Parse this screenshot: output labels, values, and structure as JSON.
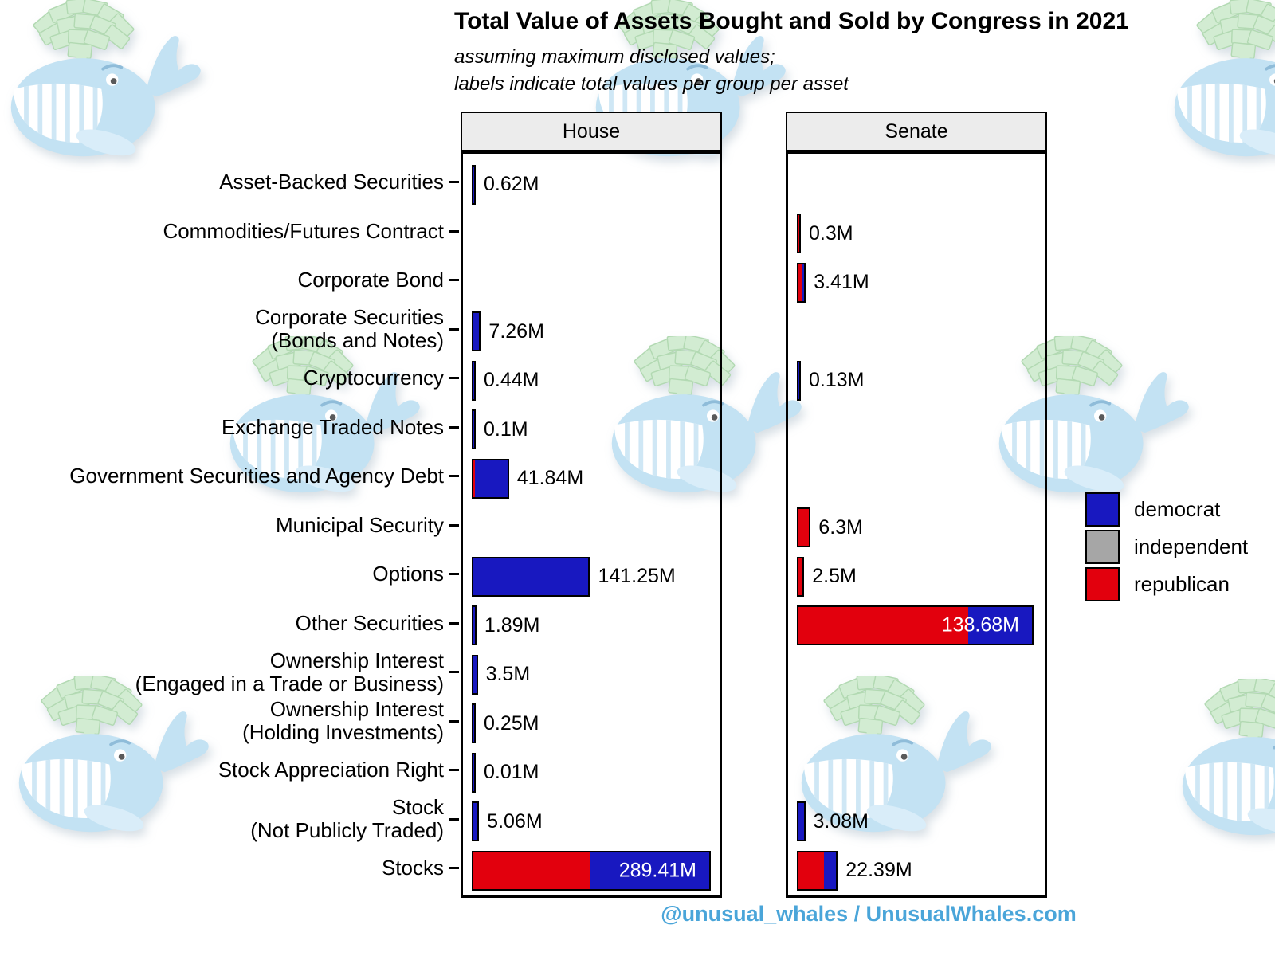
{
  "footer": "@unusual_whales / UnusualWhales.com",
  "colors": {
    "democrat": "#1818c0",
    "independent": "#a6a6a6",
    "republican": "#e2000d",
    "bar_outline": "#000000",
    "panel_header_bg": "#ececec",
    "footer_text": "#4aa5d9",
    "whale_blue": "#c3e2f3",
    "money_green": "#d2ecd2"
  },
  "chart_data": {
    "type": "bar",
    "orientation": "horizontal",
    "title": "Total Value of Assets Bought and Sold by Congress in 2021",
    "subtitle": [
      "assuming maximum disclosed values;",
      "labels indicate total values per group per asset"
    ],
    "unit": "millions USD",
    "legend_entries": [
      "democrat",
      "independent",
      "republican"
    ],
    "legend_position": "right",
    "grid": false,
    "categories": [
      "Asset-Backed Securities",
      "Commodities/Futures Contract",
      "Corporate Bond",
      "Corporate Securities\n(Bonds and Notes)",
      "Cryptocurrency",
      "Exchange Traded Notes",
      "Government Securities and Agency Debt",
      "Municipal Security",
      "Options",
      "Other Securities",
      "Ownership Interest\n(Engaged in a Trade or Business)",
      "Ownership Interest\n(Holding Investments)",
      "Stock Appreciation Right",
      "Stock\n(Not Publicly Traded)",
      "Stocks"
    ],
    "panels": [
      {
        "name": "House",
        "axis_max_value": 289.41,
        "rows": [
          {
            "cat": 0,
            "total": 0.62,
            "label": "0.62M",
            "label_inside": false,
            "segments": [
              {
                "party": "democrat",
                "value": 0.62
              }
            ]
          },
          {
            "cat": 3,
            "total": 7.26,
            "label": "7.26M",
            "label_inside": false,
            "segments": [
              {
                "party": "democrat",
                "value": 7.26
              }
            ]
          },
          {
            "cat": 4,
            "total": 0.44,
            "label": "0.44M",
            "label_inside": false,
            "segments": [
              {
                "party": "democrat",
                "value": 0.44
              }
            ]
          },
          {
            "cat": 5,
            "total": 0.1,
            "label": "0.1M",
            "label_inside": false,
            "segments": [
              {
                "party": "democrat",
                "value": 0.1
              }
            ]
          },
          {
            "cat": 6,
            "total": 41.84,
            "label": "41.84M",
            "label_inside": false,
            "segments": [
              {
                "party": "republican",
                "value": 1.8
              },
              {
                "party": "democrat",
                "value": 40.04
              }
            ]
          },
          {
            "cat": 8,
            "total": 141.25,
            "label": "141.25M",
            "label_inside": false,
            "segments": [
              {
                "party": "democrat",
                "value": 141.25
              }
            ]
          },
          {
            "cat": 9,
            "total": 1.89,
            "label": "1.89M",
            "label_inside": false,
            "segments": [
              {
                "party": "democrat",
                "value": 1.89
              }
            ]
          },
          {
            "cat": 10,
            "total": 3.5,
            "label": "3.5M",
            "label_inside": false,
            "segments": [
              {
                "party": "democrat",
                "value": 3.5
              }
            ]
          },
          {
            "cat": 11,
            "total": 0.25,
            "label": "0.25M",
            "label_inside": false,
            "segments": [
              {
                "party": "democrat",
                "value": 0.25
              }
            ]
          },
          {
            "cat": 12,
            "total": 0.01,
            "label": "0.01M",
            "label_inside": false,
            "segments": [
              {
                "party": "democrat",
                "value": 0.01
              }
            ]
          },
          {
            "cat": 13,
            "total": 5.06,
            "label": "5.06M",
            "label_inside": false,
            "segments": [
              {
                "party": "democrat",
                "value": 5.06
              }
            ]
          },
          {
            "cat": 14,
            "total": 289.41,
            "label": "289.41M",
            "label_inside": true,
            "segments": [
              {
                "party": "republican",
                "value": 143.2
              },
              {
                "party": "democrat",
                "value": 146.21
              }
            ]
          }
        ]
      },
      {
        "name": "Senate",
        "axis_max_value": 138.68,
        "rows": [
          {
            "cat": 1,
            "total": 0.3,
            "label": "0.3M",
            "label_inside": false,
            "segments": [
              {
                "party": "republican",
                "value": 0.3
              }
            ]
          },
          {
            "cat": 2,
            "total": 3.41,
            "label": "3.41M",
            "label_inside": false,
            "segments": [
              {
                "party": "republican",
                "value": 2.0
              },
              {
                "party": "democrat",
                "value": 1.41
              }
            ]
          },
          {
            "cat": 4,
            "total": 0.13,
            "label": "0.13M",
            "label_inside": false,
            "segments": [
              {
                "party": "democrat",
                "value": 0.13
              }
            ]
          },
          {
            "cat": 7,
            "total": 6.3,
            "label": "6.3M",
            "label_inside": false,
            "segments": [
              {
                "party": "republican",
                "value": 6.3
              }
            ]
          },
          {
            "cat": 8,
            "total": 2.5,
            "label": "2.5M",
            "label_inside": false,
            "segments": [
              {
                "party": "republican",
                "value": 2.5
              }
            ]
          },
          {
            "cat": 9,
            "total": 138.68,
            "label": "138.68M",
            "label_inside": true,
            "segments": [
              {
                "party": "republican",
                "value": 101.0
              },
              {
                "party": "democrat",
                "value": 37.68
              }
            ]
          },
          {
            "cat": 13,
            "total": 3.08,
            "label": "3.08M",
            "label_inside": false,
            "segments": [
              {
                "party": "democrat",
                "value": 3.08
              }
            ]
          },
          {
            "cat": 14,
            "total": 22.39,
            "label": "22.39M",
            "label_inside": false,
            "segments": [
              {
                "party": "republican",
                "value": 15.1
              },
              {
                "party": "democrat",
                "value": 7.29
              }
            ]
          }
        ]
      }
    ]
  }
}
